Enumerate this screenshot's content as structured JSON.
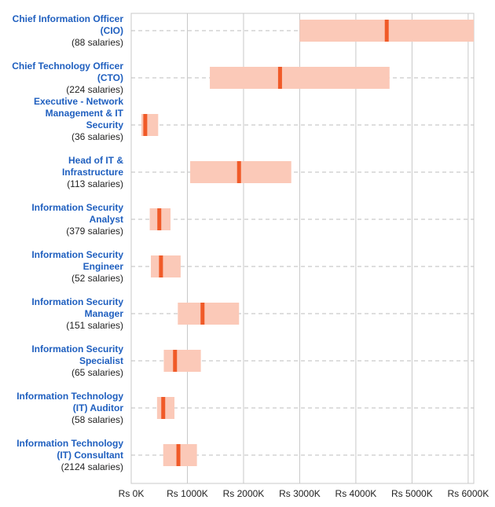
{
  "colors": {
    "range_fill": "#fbc9b8",
    "median_marker": "#f05a28",
    "title_text": "#1f5fbf",
    "count_text": "#222222",
    "grid": "#c8c8c8",
    "row_line": "#bdbdbd"
  },
  "chart_data": {
    "type": "range-bar",
    "orientation": "horizontal",
    "title": "",
    "xlabel": "",
    "ylabel": "",
    "xlim": [
      0,
      6100000
    ],
    "x_ticks": [
      0,
      1000000,
      2000000,
      3000000,
      4000000,
      5000000,
      6000000
    ],
    "x_tick_labels": [
      "Rs 0K",
      "Rs 1000K",
      "Rs 2000K",
      "Rs 3000K",
      "Rs 4000K",
      "Rs 5000K",
      "Rs 6000K"
    ],
    "grid": true,
    "rows": [
      {
        "title_lines": [
          "Chief Information Officer",
          "(CIO)"
        ],
        "count": "(88 salaries)",
        "low": 3000000,
        "median": 4550000,
        "high": 6100000
      },
      {
        "title_lines": [
          "Chief Technology Officer",
          "(CTO)"
        ],
        "count": "(224 salaries)",
        "low": 1400000,
        "median": 2650000,
        "high": 4600000
      },
      {
        "title_lines": [
          "Executive - Network",
          "Management & IT",
          "Security"
        ],
        "count": "(36 salaries)",
        "low": 180000,
        "median": 250000,
        "high": 480000
      },
      {
        "title_lines": [
          "Head of IT &",
          "Infrastructure"
        ],
        "count": "(113 salaries)",
        "low": 1050000,
        "median": 1920000,
        "high": 2850000
      },
      {
        "title_lines": [
          "Information Security",
          "Analyst"
        ],
        "count": "(379 salaries)",
        "low": 330000,
        "median": 500000,
        "high": 700000
      },
      {
        "title_lines": [
          "Information Security",
          "Engineer"
        ],
        "count": "(52 salaries)",
        "low": 350000,
        "median": 530000,
        "high": 880000
      },
      {
        "title_lines": [
          "Information Security",
          "Manager"
        ],
        "count": "(151 salaries)",
        "low": 830000,
        "median": 1270000,
        "high": 1920000
      },
      {
        "title_lines": [
          "Information Security",
          "Specialist"
        ],
        "count": "(65 salaries)",
        "low": 580000,
        "median": 780000,
        "high": 1240000
      },
      {
        "title_lines": [
          "Information Technology",
          "(IT) Auditor"
        ],
        "count": "(58 salaries)",
        "low": 460000,
        "median": 570000,
        "high": 770000
      },
      {
        "title_lines": [
          "Information Technology",
          "(IT) Consultant"
        ],
        "count": "(2124 salaries)",
        "low": 570000,
        "median": 840000,
        "high": 1170000
      }
    ]
  }
}
